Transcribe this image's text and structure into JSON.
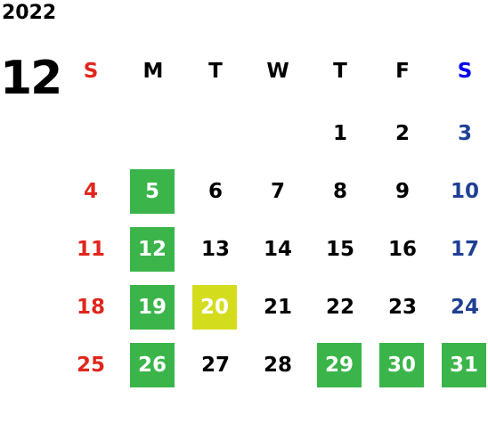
{
  "year": "2022",
  "month": "12",
  "weekdays": [
    "S",
    "M",
    "T",
    "W",
    "T",
    "F",
    "S"
  ],
  "sunday_color": "#e0261d",
  "saturday_color": "#1f3f94",
  "saturday_header_color": "#0000ee",
  "weekday_color": "#000000",
  "highlight_text_color": "#ffffff",
  "weeks": [
    [
      null,
      null,
      null,
      null,
      "1",
      "2",
      "3"
    ],
    [
      "4",
      {
        "day": "5",
        "bg": "#3bb54a"
      },
      "6",
      "7",
      "8",
      "9",
      "10"
    ],
    [
      "11",
      {
        "day": "12",
        "bg": "#3bb54a"
      },
      "13",
      "14",
      "15",
      "16",
      "17"
    ],
    [
      "18",
      {
        "day": "19",
        "bg": "#3bb54a"
      },
      {
        "day": "20",
        "bg": "#d4dc1e"
      },
      "21",
      "22",
      "23",
      "24"
    ],
    [
      "25",
      {
        "day": "26",
        "bg": "#3bb54a"
      },
      "27",
      "28",
      {
        "day": "29",
        "bg": "#3bb54a"
      },
      {
        "day": "30",
        "bg": "#3bb54a"
      },
      {
        "day": "31",
        "bg": "#3bb54a"
      }
    ]
  ]
}
